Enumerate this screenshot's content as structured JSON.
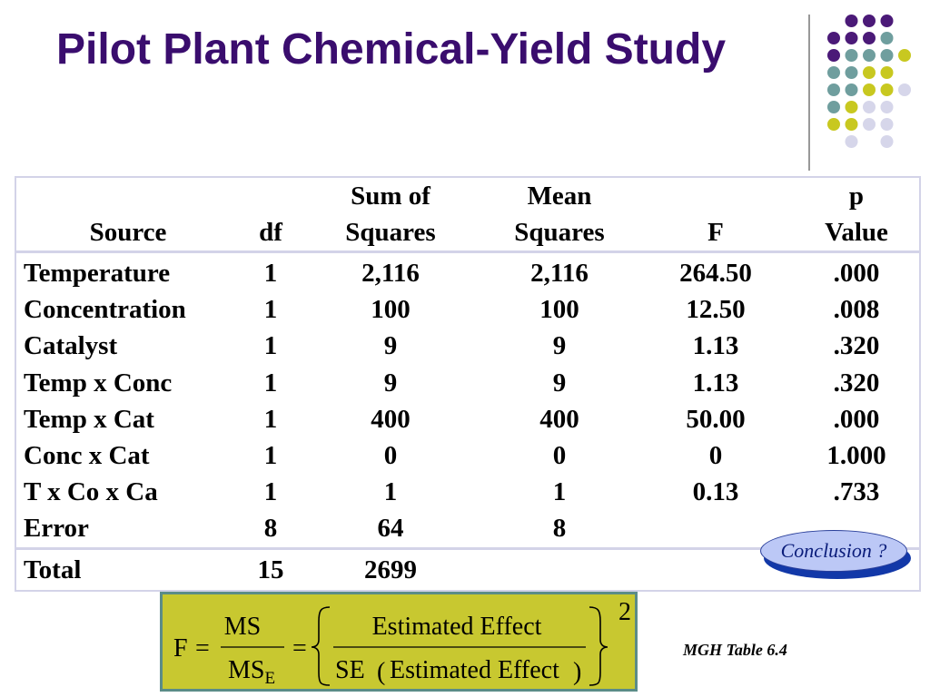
{
  "title": "Pilot Plant Chemical-Yield Study",
  "table": {
    "headers": {
      "source": [
        "",
        "Source"
      ],
      "df": [
        "",
        "df"
      ],
      "ss": [
        "Sum of",
        "Squares"
      ],
      "ms": [
        "Mean",
        "Squares"
      ],
      "f": [
        "",
        "F"
      ],
      "p": [
        "p",
        "Value"
      ]
    },
    "rows": [
      [
        "Temperature",
        "1",
        "2,116",
        "2,116",
        "264.50",
        ".000"
      ],
      [
        "Concentration",
        "1",
        "100",
        "100",
        "12.50",
        ".008"
      ],
      [
        "Catalyst",
        "1",
        "9",
        "9",
        "1.13",
        ".320"
      ],
      [
        "Temp x Conc",
        "1",
        "9",
        "9",
        "1.13",
        ".320"
      ],
      [
        "Temp x Cat",
        "1",
        "400",
        "400",
        "50.00",
        ".000"
      ],
      [
        "Conc x Cat",
        "1",
        "0",
        "0",
        "0",
        "1.000"
      ],
      [
        "T x Co x Ca",
        "1",
        "1",
        "1",
        "0.13",
        ".733"
      ],
      [
        "Error",
        "8",
        "64",
        "8",
        "",
        ""
      ]
    ],
    "total": [
      "Total",
      "15",
      "2699",
      "",
      "",
      ""
    ]
  },
  "conclusion_button": "Conclusion ?",
  "formula": {
    "lhs": "F",
    "eq": "=",
    "num1": "MS",
    "den1": "MS",
    "den1_sub": "E",
    "num2": "Estimated Effect",
    "den2_se": "SE",
    "den2_arg": "Estimated Effect",
    "exponent": "2"
  },
  "source_note": "MGH Table 6.4",
  "colors": {
    "title": "#3a0d6e",
    "dot_purple": "#4b1a78",
    "dot_teal": "#6f9e9e",
    "dot_yellow": "#c8c820",
    "dot_lavender": "#d6d6ea",
    "formula_bg": "#c8c830",
    "formula_border": "#5b8c88",
    "conclusion_fill": "#bcc8f6",
    "conclusion_shadow": "#1238a8"
  }
}
